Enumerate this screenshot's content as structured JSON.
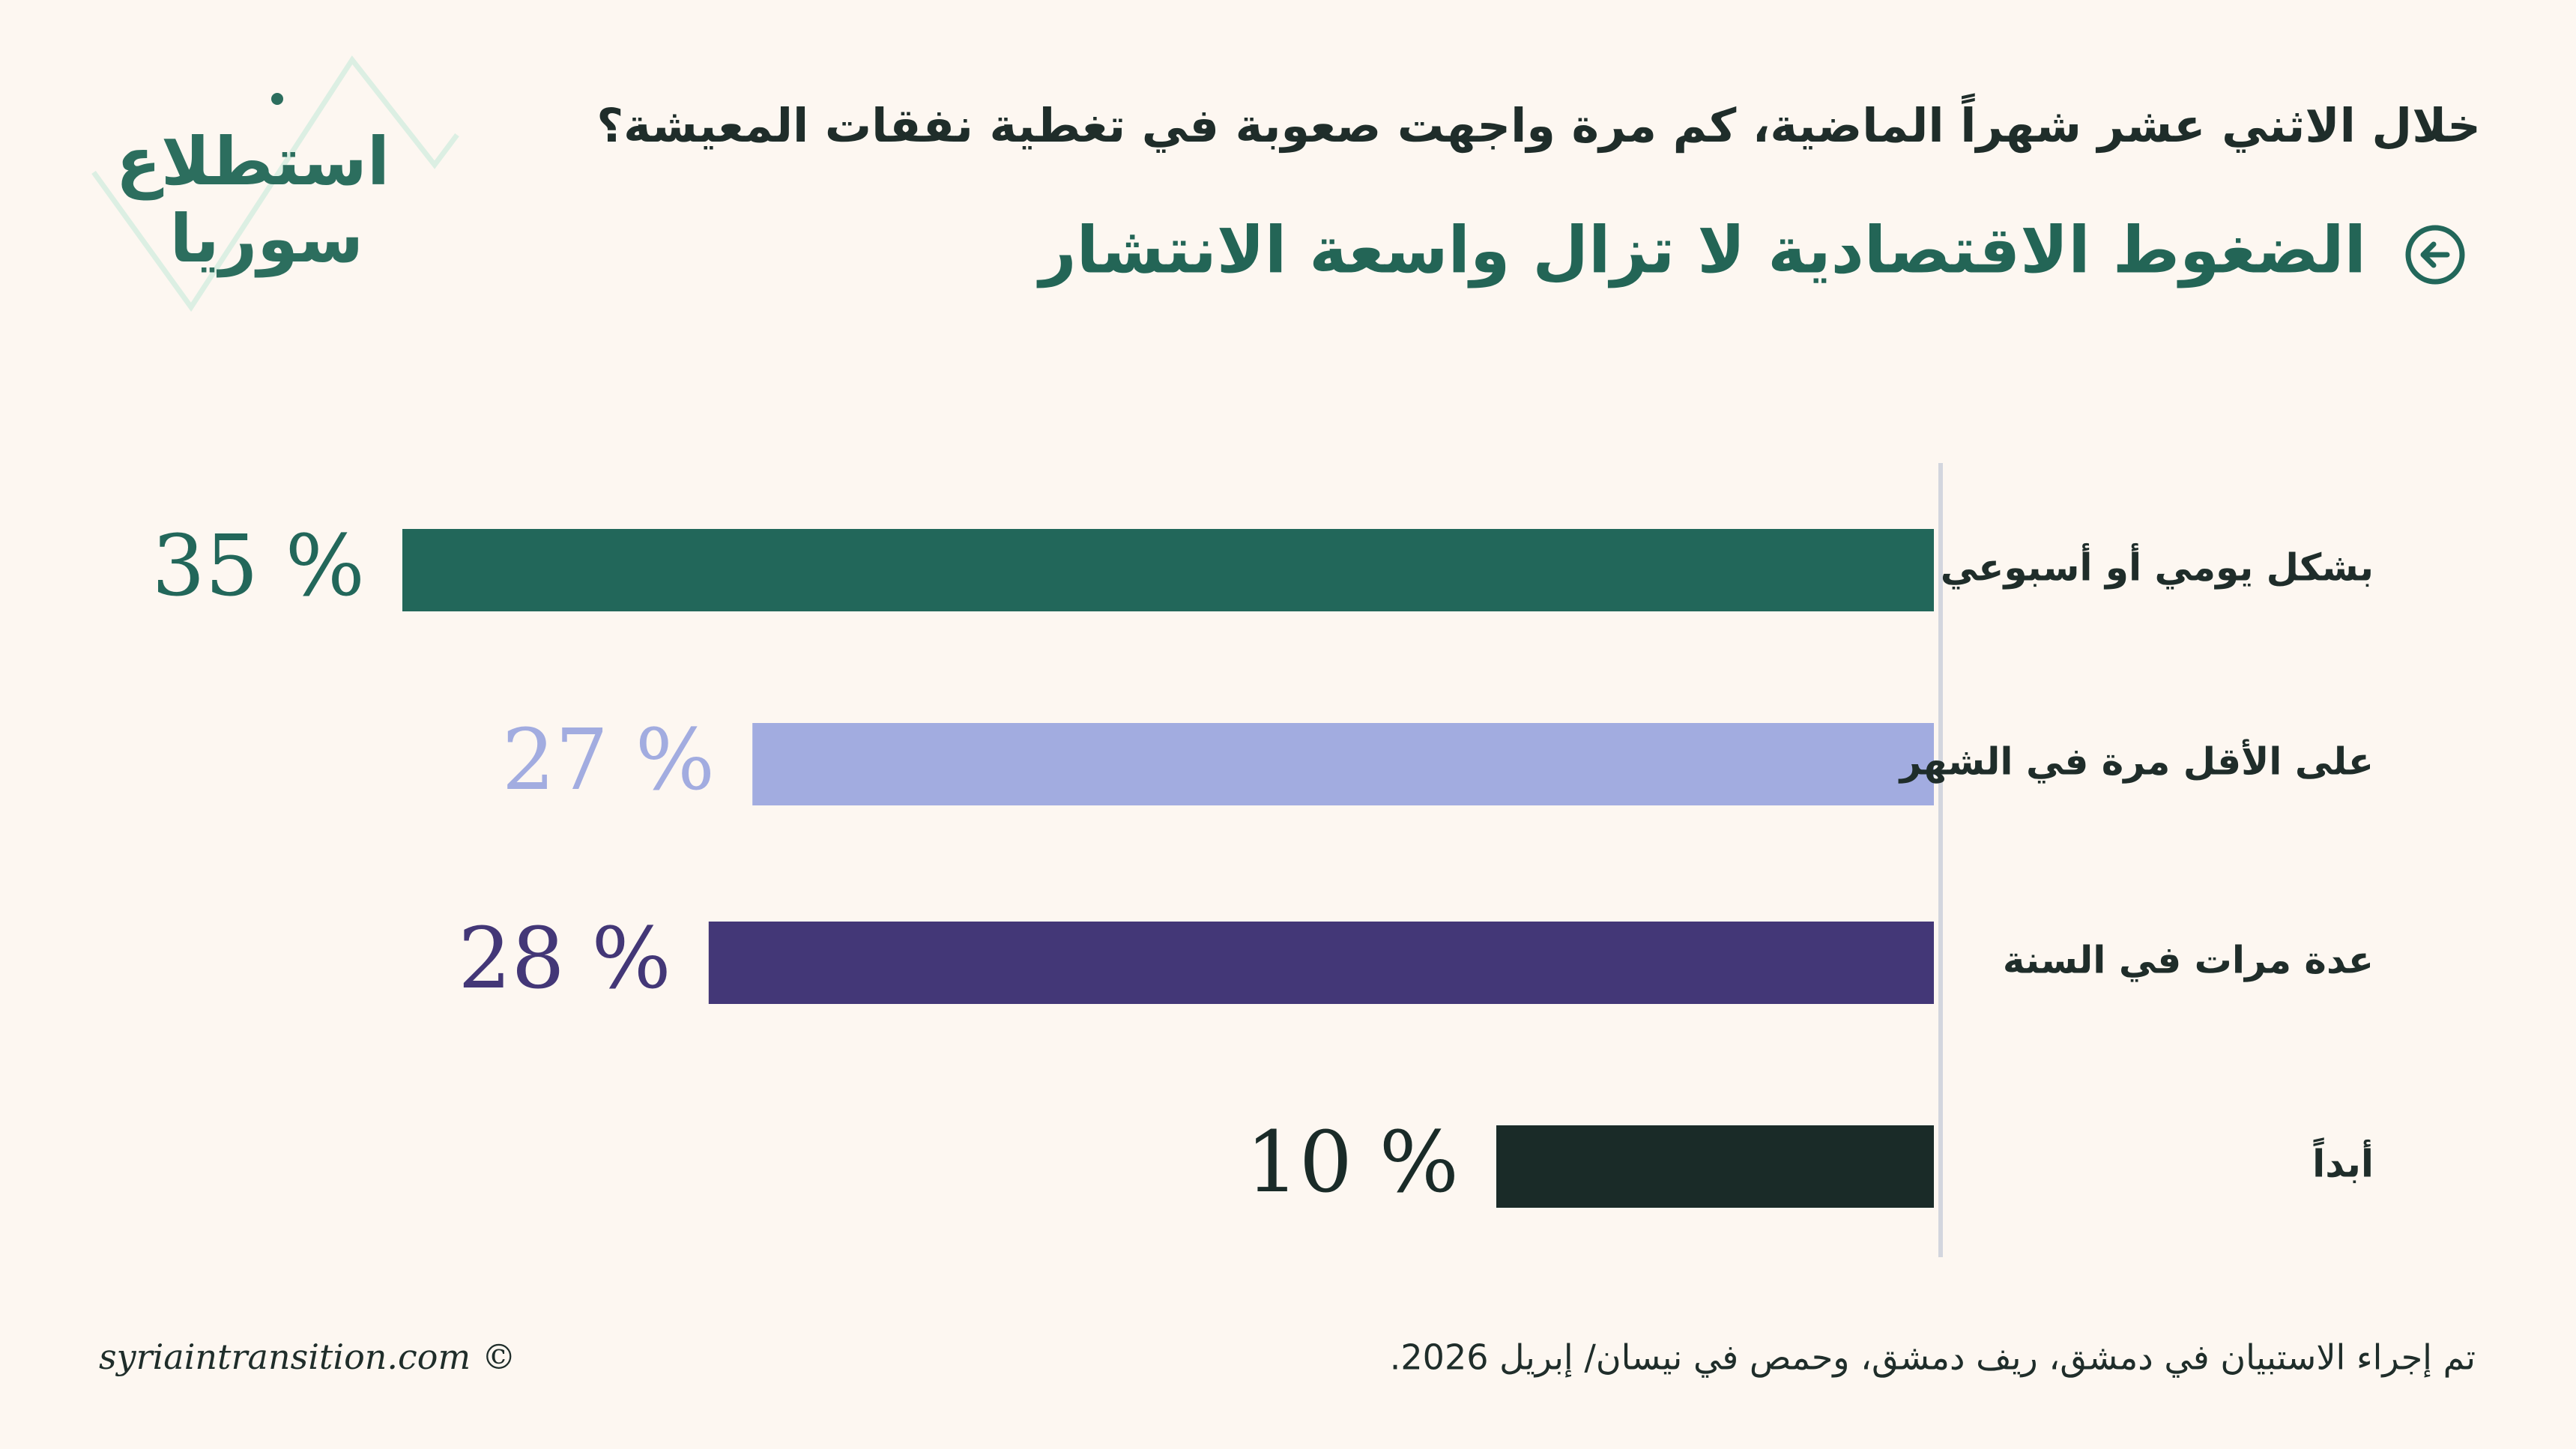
{
  "chart_data": {
    "type": "bar",
    "orientation": "horizontal",
    "logo": [
      "استطلاع",
      "سوريا"
    ],
    "subtitle": "خلال الاثني عشر شهراً الماضية، كم مرة واجهت صعوبة في تغطية نفقات المعيشة؟",
    "title": "الضغوط الاقتصادية لا تزال واسعة الانتشار",
    "categories": [
      "بشكل يومي أو أسبوعي",
      "على الأقل مرة في الشهر",
      "عدة مرات في السنة",
      "أبداً"
    ],
    "values": [
      35,
      27,
      28,
      10
    ],
    "value_labels": [
      "35 %",
      "27 %",
      "28 %",
      "10 %"
    ],
    "colors": [
      "#22675a",
      "#a2ace0",
      "#433777",
      "#1a2b28"
    ],
    "note": "تم إجراء الاستبيان في دمشق، ريف دمشق، وحمص في نيسان/ إبريل 2026.",
    "source": "syriaintransition.com ©"
  }
}
